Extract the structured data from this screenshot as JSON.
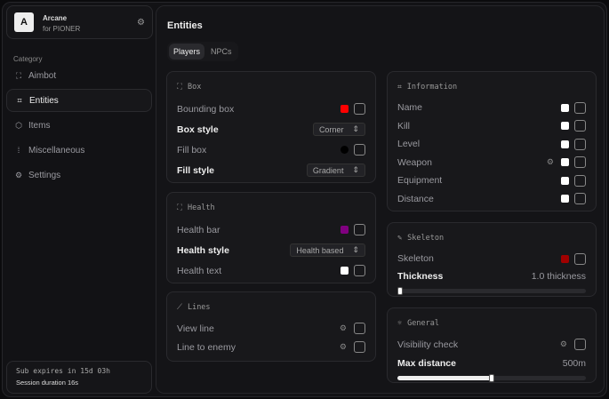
{
  "brand": {
    "logo": "A",
    "name": "Arcane",
    "sub": "for PIONER"
  },
  "sidebar": {
    "category": "Category",
    "items": [
      {
        "label": "Aimbot",
        "icon": "crosshair-icon"
      },
      {
        "label": "Entities",
        "icon": "scan-face-icon",
        "active": true
      },
      {
        "label": "Items",
        "icon": "box-icon"
      },
      {
        "label": "Miscellaneous",
        "icon": "grid-icon"
      },
      {
        "label": "Settings",
        "icon": "gear-icon"
      }
    ]
  },
  "subscription": {
    "expires": "Sub expires in 15d 03h",
    "session": "Session duration 16s"
  },
  "main": {
    "title": "Entities",
    "tabs": [
      "Players",
      "NPCs"
    ],
    "active_tab": "Players"
  },
  "box": {
    "title": "Box",
    "bounding": "Bounding box",
    "bounding_color": "#ff0000",
    "box_style": "Box style",
    "box_style_value": "Corner",
    "fill_box": "Fill box",
    "fill_color": "#000000",
    "fill_style": "Fill style",
    "fill_style_value": "Gradient"
  },
  "health": {
    "title": "Health",
    "bar": "Health bar",
    "bar_color": "#800080",
    "style": "Health style",
    "style_value": "Health based",
    "text": "Health text",
    "text_color": "#ffffff"
  },
  "lines": {
    "title": "Lines",
    "view": "View line",
    "enemy": "Line to enemy"
  },
  "information": {
    "title": "Information",
    "items": [
      "Name",
      "Kill",
      "Level",
      "Weapon",
      "Equipment",
      "Distance"
    ]
  },
  "skeleton": {
    "title": "Skeleton",
    "label": "Skeleton",
    "color": "#a00000",
    "thickness": "Thickness",
    "thickness_value": "1.0 thickness",
    "thickness_fraction": 0
  },
  "general": {
    "title": "General",
    "visibility": "Visibility check",
    "max_distance": "Max distance",
    "max_distance_value": "500m",
    "max_distance_fraction": 0.5
  }
}
